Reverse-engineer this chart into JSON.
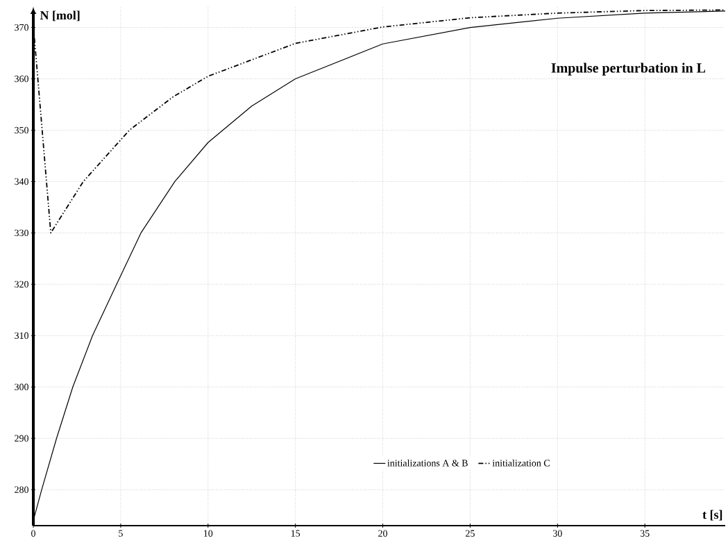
{
  "chart_data": {
    "type": "line",
    "title": "Impulse perturbation in L",
    "xlabel": "t [s]",
    "ylabel": "N [mol]",
    "xlim": [
      0,
      39.6
    ],
    "ylim": [
      273,
      374
    ],
    "xticks": [
      0,
      5,
      10,
      15,
      20,
      25,
      30,
      35
    ],
    "yticks": [
      280,
      290,
      300,
      310,
      320,
      330,
      340,
      350,
      360,
      370
    ],
    "grid": true,
    "legend": "bottom",
    "marker": "none",
    "series": [
      {
        "name": "initializations A & B",
        "color": "#000000",
        "line_style": "solid",
        "x": [
          0,
          0.48,
          1.33,
          2.26,
          3.39,
          4.77,
          6.16,
          8.1,
          10,
          12.5,
          15,
          20,
          25,
          30,
          35,
          39.6
        ],
        "values": [
          274,
          280,
          290,
          300,
          310,
          320,
          330,
          340,
          347.6,
          354.7,
          360,
          366.8,
          370,
          371.8,
          372.8,
          373.2
        ]
      },
      {
        "name": "initialization C",
        "color": "#000000",
        "line_style": "dashdotdotted",
        "x": [
          0,
          1,
          2.86,
          5.5,
          8,
          10,
          15,
          20,
          25,
          30,
          35,
          39.6
        ],
        "values": [
          370.5,
          330,
          340,
          350,
          356.5,
          360.5,
          366.9,
          370.1,
          371.9,
          372.8,
          373.3,
          373.4
        ]
      }
    ]
  }
}
